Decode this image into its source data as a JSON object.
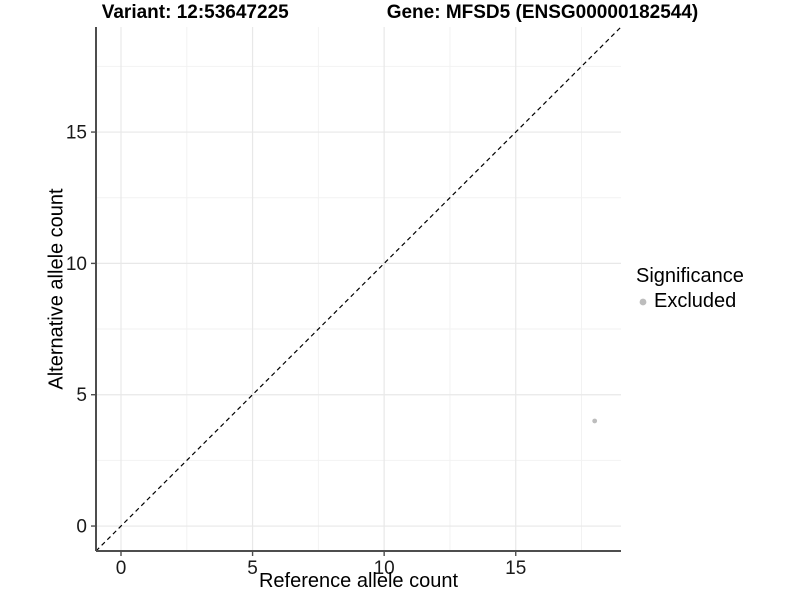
{
  "header": {
    "variant_label": "Variant: 12:53647225",
    "gene_label": "Gene: MFSD5 (ENSG00000182544)"
  },
  "chart_data": {
    "type": "scatter",
    "title": "Variant: 12:53647225    Gene: MFSD5 (ENSG00000182544)",
    "xlabel": "Reference allele count",
    "ylabel": "Alternative allele count",
    "xlim": [
      -0.95,
      19.0
    ],
    "ylim": [
      -0.95,
      19.0
    ],
    "x_ticks": [
      0,
      5,
      10,
      15
    ],
    "y_ticks": [
      0,
      5,
      10,
      15
    ],
    "x_minor_ticks": [
      2.5,
      7.5,
      12.5,
      17.5
    ],
    "y_minor_ticks": [
      2.5,
      7.5,
      12.5,
      17.5
    ],
    "grid": "major+minor",
    "points": [
      {
        "x": 18,
        "y": 4,
        "series": "Excluded"
      }
    ],
    "reference_line": {
      "kind": "identity",
      "slope": 1,
      "intercept": 0,
      "style": "dashed",
      "color": "#000000"
    },
    "legend": {
      "title": "Significance",
      "position": "right",
      "entries": [
        {
          "label": "Excluded",
          "color": "#bdbdbd"
        }
      ]
    },
    "colors": {
      "point": "#bdbdbd",
      "grid_major": "#e8e8e8",
      "grid_minor": "#f2f2f2",
      "axis_line": "#4d4d4d",
      "tick_mark": "#4d4d4d",
      "tick_text": "#1a1a1a",
      "background": "#ffffff"
    }
  }
}
